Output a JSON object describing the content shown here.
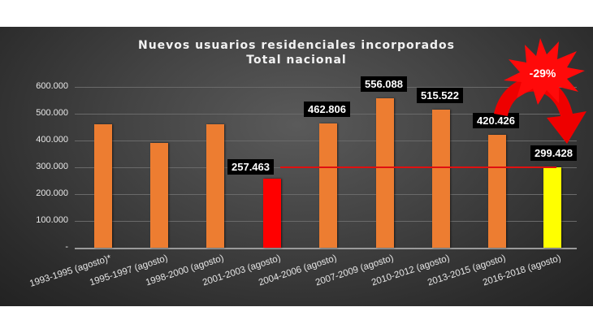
{
  "chart_data": {
    "type": "bar",
    "title": "Nuevos usuarios residenciales incorporados",
    "subtitle": "Total nacional",
    "xlabel": "",
    "ylabel": "",
    "ylim": [
      0,
      600000
    ],
    "grid": true,
    "legend": null,
    "y_ticks": [
      "600.000",
      "500.000",
      "400.000",
      "300.000",
      "200.000",
      "100.000",
      "-"
    ],
    "categories": [
      "1993-1995 (agosto)*",
      "1995-1997 (agosto)",
      "1998-2000 (agosto)",
      "2001-2003 (agosto)",
      "2004-2006 (agosto)",
      "2007-2009 (agosto)",
      "2010-2012 (agosto)",
      "2013-2015 (agosto)",
      "2016-2018 (agosto)"
    ],
    "values": [
      462000,
      392000,
      462000,
      257463,
      462806,
      556088,
      515522,
      420426,
      299428
    ],
    "data_labels": [
      "",
      "",
      "",
      "257.463",
      "462.806",
      "556.088",
      "515.522",
      "420.426",
      "299.428"
    ],
    "bar_colors": [
      "#ed7d31",
      "#ed7d31",
      "#ed7d31",
      "#ff0000",
      "#ed7d31",
      "#ed7d31",
      "#ed7d31",
      "#ed7d31",
      "#ffff00"
    ],
    "reference_line": {
      "value": 299428,
      "color": "#e01010"
    },
    "annotations": [
      {
        "text": "-29%",
        "shape": "red starburst with curved arrow from 2013-2015 to 2016-2018"
      }
    ]
  }
}
